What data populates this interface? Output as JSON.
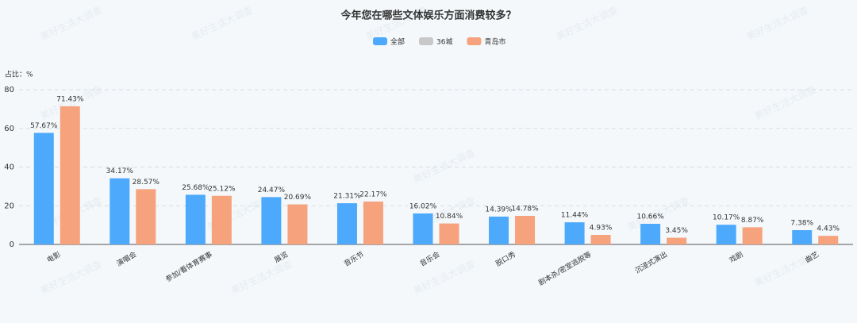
{
  "chart_data": {
    "type": "bar",
    "title": "今年您在哪些文体娱乐方面消费较多？",
    "y_label": "占比：%",
    "watermark": "美好生活大调查",
    "categories": [
      "电影",
      "演唱会",
      "参加/看体育赛事",
      "展览",
      "音乐节",
      "音乐会",
      "脱口秀",
      "剧本杀/密室逃脱等",
      "沉浸式演出",
      "戏剧",
      "曲艺"
    ],
    "series": [
      {
        "name": "全部",
        "color": "#4da9fb",
        "values": [
          57.67,
          34.17,
          25.68,
          24.47,
          21.31,
          16.02,
          14.39,
          11.44,
          10.66,
          10.17,
          7.38
        ],
        "value_labels": [
          "57.67%",
          "34.17%",
          "25.68%",
          "24.47%",
          "21.31%",
          "16.02%",
          "14.39%",
          "11.44%",
          "10.66%",
          "10.17%",
          "7.38%"
        ]
      },
      {
        "name": "36城",
        "color": "#c8c8c8",
        "values": [
          null,
          null,
          null,
          null,
          null,
          null,
          null,
          null,
          null,
          null,
          null
        ]
      },
      {
        "name": "青岛市",
        "color": "#f6a27d",
        "values": [
          71.43,
          28.57,
          25.12,
          20.69,
          22.17,
          10.84,
          14.78,
          4.93,
          3.45,
          8.87,
          4.43
        ],
        "value_labels": [
          "71.43%",
          "28.57%",
          "25.12%",
          "20.69%",
          "22.17%",
          "10.84%",
          "14.78%",
          "4.93%",
          "3.45%",
          "8.87%",
          "4.43%"
        ]
      }
    ],
    "ylim": [
      0,
      80
    ],
    "yticks": [
      0,
      20,
      40,
      60,
      80
    ],
    "grid": true
  }
}
